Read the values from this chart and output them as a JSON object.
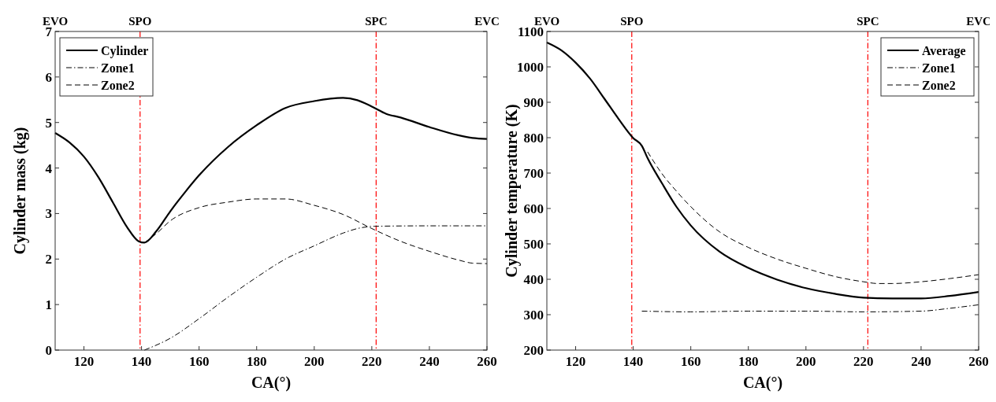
{
  "chart_data": [
    {
      "type": "line",
      "xlabel": "CA(°)",
      "ylabel": "Cylinder mass (kg)",
      "xlim": [
        110,
        260
      ],
      "xticks": [
        120,
        140,
        160,
        180,
        200,
        220,
        240,
        260
      ],
      "ylim": [
        0,
        7
      ],
      "yticks": [
        0,
        1,
        2,
        3,
        4,
        5,
        6,
        7
      ],
      "grid": false,
      "legend": "top left",
      "ref_lines": [
        {
          "axis": "x",
          "value": 139.5,
          "label": "SPO",
          "color": "#ff0000",
          "line_style": "dashdot"
        },
        {
          "axis": "x",
          "value": 221.5,
          "label": "SPC",
          "color": "#ff0000",
          "line_style": "dashdot"
        }
      ],
      "annotations": [
        "EVO",
        "EVC"
      ],
      "series": [
        {
          "name": "Cylinder",
          "color": "#000000",
          "line_style": "solid",
          "x": [
            110,
            115,
            120,
            125,
            130,
            135,
            139,
            141,
            145,
            150,
            155,
            160,
            170,
            180,
            190,
            200,
            210,
            215,
            220,
            225,
            230,
            240,
            250,
            255,
            260
          ],
          "values": [
            4.77,
            4.56,
            4.25,
            3.8,
            3.25,
            2.7,
            2.39,
            2.36,
            2.6,
            3.05,
            3.46,
            3.84,
            4.46,
            4.94,
            5.32,
            5.47,
            5.54,
            5.49,
            5.35,
            5.19,
            5.11,
            4.9,
            4.72,
            4.66,
            4.64
          ]
        },
        {
          "name": "Zone1",
          "color": "#000000",
          "line_style": "dashdot",
          "x": [
            141,
            150,
            160,
            170,
            180,
            190,
            200,
            210,
            215,
            221,
            240,
            260
          ],
          "values": [
            0,
            0.26,
            0.69,
            1.16,
            1.6,
            2.0,
            2.29,
            2.57,
            2.67,
            2.72,
            2.73,
            2.73
          ]
        },
        {
          "name": "Zone2",
          "color": "#000000",
          "line_style": "dashed",
          "x": [
            141,
            145,
            150,
            160,
            170,
            180,
            190,
            200,
            210,
            220,
            230,
            240,
            250,
            255,
            260
          ],
          "values": [
            2.36,
            2.55,
            2.84,
            3.13,
            3.25,
            3.32,
            3.32,
            3.18,
            2.98,
            2.67,
            2.39,
            2.17,
            1.98,
            1.91,
            1.9
          ]
        }
      ]
    },
    {
      "type": "line",
      "xlabel": "CA(°)",
      "ylabel": "Cylinder temperature (K)",
      "xlim": [
        110,
        260
      ],
      "xticks": [
        120,
        140,
        160,
        180,
        200,
        220,
        240,
        260
      ],
      "ylim": [
        200,
        1100
      ],
      "yticks": [
        200,
        300,
        400,
        500,
        600,
        700,
        800,
        900,
        1000,
        1100
      ],
      "grid": false,
      "legend": "top right",
      "ref_lines": [
        {
          "axis": "x",
          "value": 139.5,
          "label": "SPO",
          "color": "#ff0000",
          "line_style": "dashdot"
        },
        {
          "axis": "x",
          "value": 221.5,
          "label": "SPC",
          "color": "#ff0000",
          "line_style": "dashdot"
        }
      ],
      "annotations": [
        "EVO",
        "EVC"
      ],
      "series": [
        {
          "name": "Average",
          "color": "#000000",
          "line_style": "solid",
          "x": [
            110,
            115,
            120,
            125,
            130,
            135,
            140,
            143,
            145,
            150,
            155,
            160,
            170,
            180,
            190,
            200,
            210,
            220,
            230,
            240,
            250,
            260
          ],
          "values": [
            1069,
            1047,
            1012,
            967,
            910,
            852,
            799,
            777,
            742,
            671,
            605,
            552,
            478,
            432,
            399,
            375,
            359,
            348,
            346,
            346,
            353,
            364
          ]
        },
        {
          "name": "Zone1",
          "color": "#000000",
          "line_style": "dashdot",
          "x": [
            143,
            160,
            180,
            200,
            220,
            240,
            250,
            260
          ],
          "values": [
            310,
            308,
            310,
            310,
            308,
            310,
            318,
            328
          ]
        },
        {
          "name": "Zone2",
          "color": "#000000",
          "line_style": "dashed",
          "x": [
            145,
            150,
            155,
            160,
            170,
            180,
            190,
            200,
            210,
            220,
            225,
            230,
            240,
            250,
            260
          ],
          "values": [
            760,
            698,
            649,
            605,
            534,
            490,
            457,
            431,
            408,
            393,
            388,
            388,
            393,
            402,
            413
          ]
        }
      ]
    }
  ]
}
